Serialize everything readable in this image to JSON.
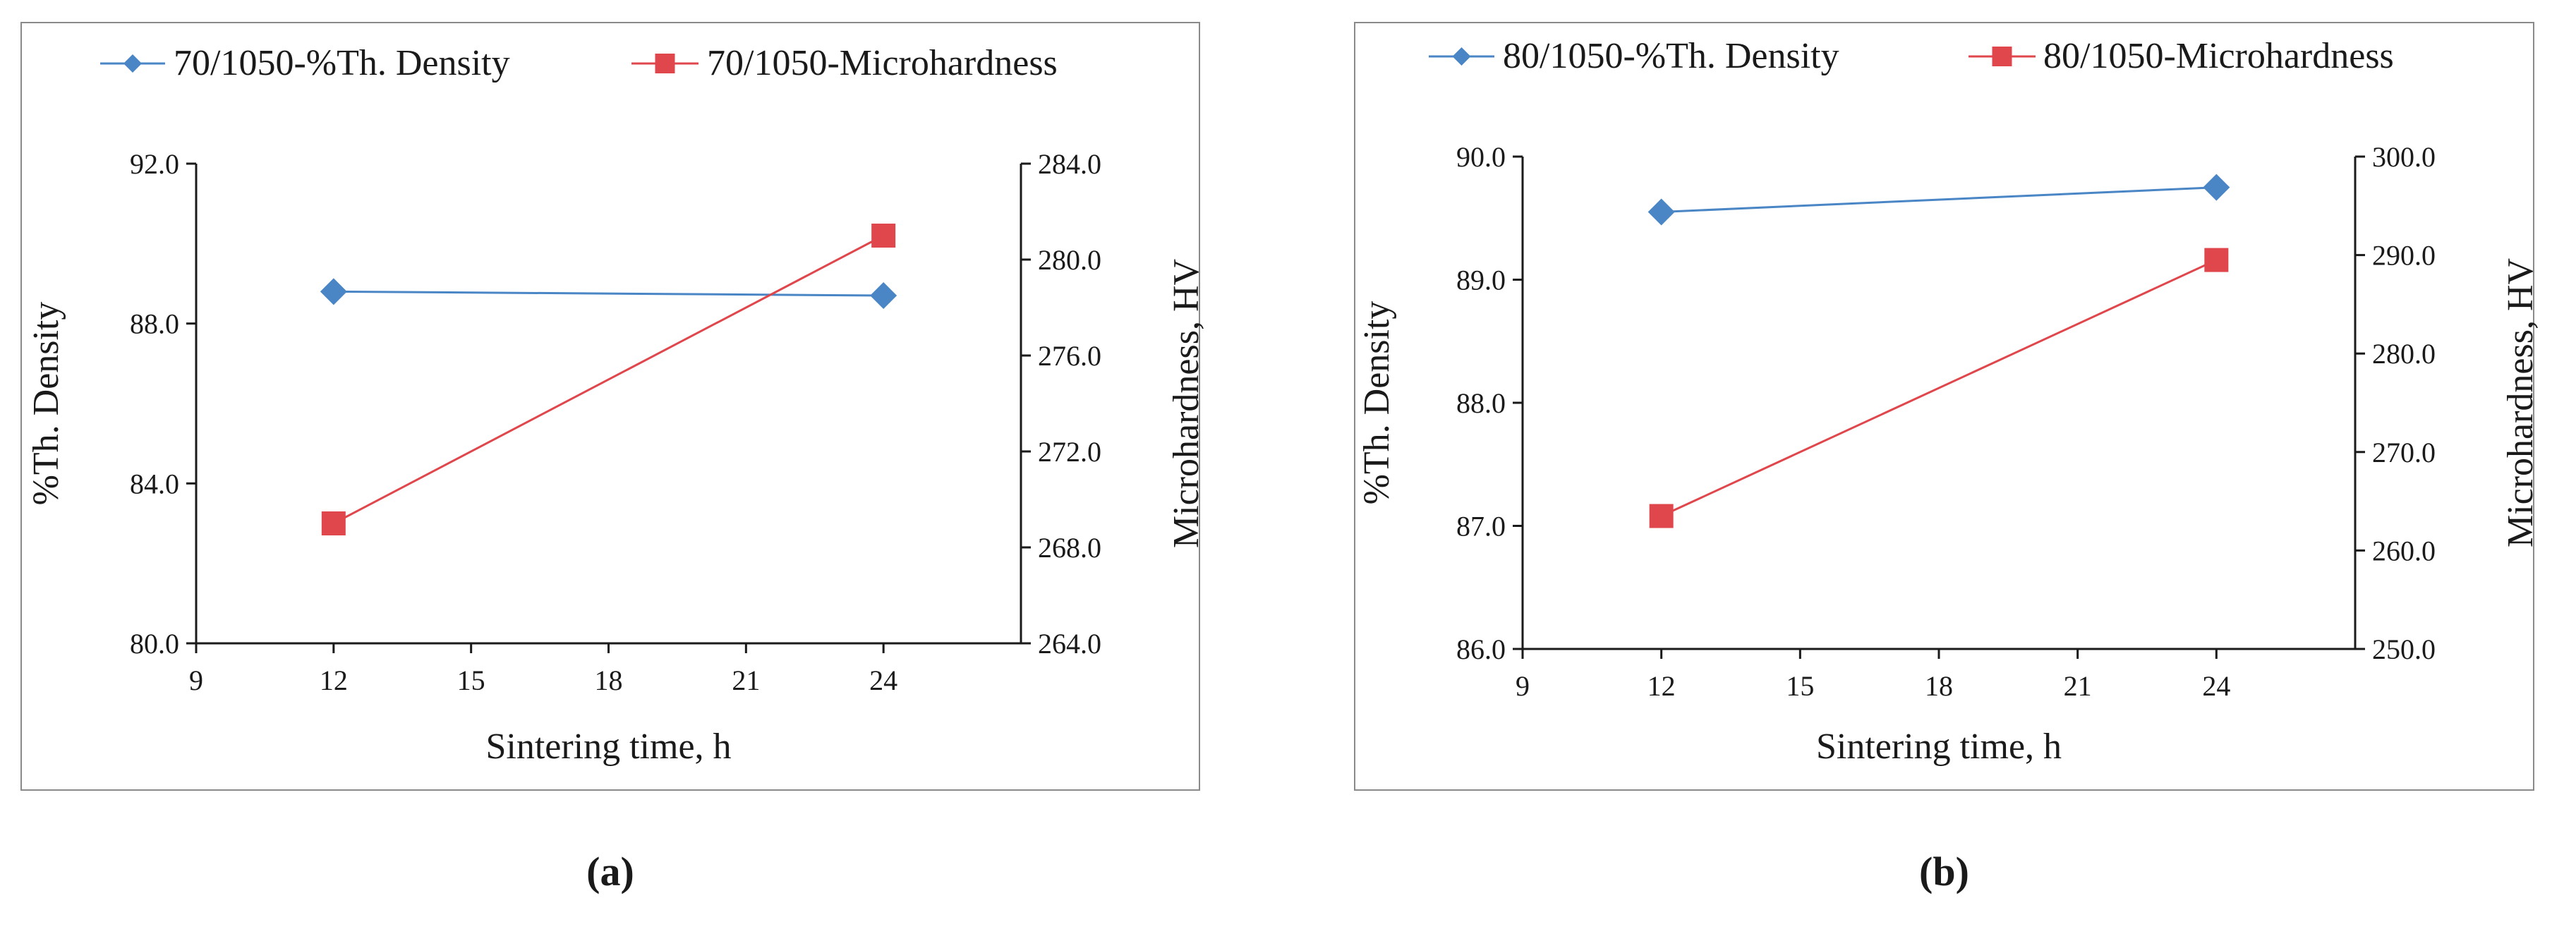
{
  "chart_data": [
    {
      "type": "line",
      "panel_label": "(a)",
      "xlabel": "Sintering time, h",
      "ylabel_left": "%Th. Density",
      "ylabel_right": "Microhardness,  HV",
      "xlim": [
        9,
        27
      ],
      "x_ticks": [
        "9",
        "12",
        "15",
        "18",
        "21",
        "24"
      ],
      "ylim_left": [
        80,
        92
      ],
      "y_ticks_left": [
        "80.0",
        "84.0",
        "88.0",
        "92.0"
      ],
      "ylim_right": [
        264,
        284
      ],
      "y_ticks_right": [
        "264.0",
        "268.0",
        "272.0",
        "276.0",
        "280.0",
        "284.0"
      ],
      "legend_position": "top",
      "series": [
        {
          "name": "70/1050-%Th. Density",
          "axis": "left",
          "marker": "diamond",
          "color": "#4a86c5",
          "x": [
            12,
            24
          ],
          "y": [
            88.8,
            88.7
          ]
        },
        {
          "name": "70/1050-Microhardness",
          "axis": "right",
          "marker": "square",
          "color": "#e0474c",
          "x": [
            12,
            24
          ],
          "y": [
            269.0,
            281.0
          ]
        }
      ]
    },
    {
      "type": "line",
      "panel_label": "(b)",
      "xlabel": "Sintering time, h",
      "ylabel_left": "%Th. Density",
      "ylabel_right": "Microhardness,  HV",
      "xlim": [
        9,
        27
      ],
      "x_ticks": [
        "9",
        "12",
        "15",
        "18",
        "21",
        "24"
      ],
      "ylim_left": [
        86,
        90
      ],
      "y_ticks_left": [
        "86.0",
        "87.0",
        "88.0",
        "89.0",
        "90.0"
      ],
      "ylim_right": [
        250,
        300
      ],
      "y_ticks_right": [
        "250.0",
        "260.0",
        "270.0",
        "280.0",
        "290.0",
        "300.0"
      ],
      "legend_position": "top",
      "series": [
        {
          "name": "80/1050-%Th. Density",
          "axis": "left",
          "marker": "diamond",
          "color": "#4a86c5",
          "x": [
            12,
            24
          ],
          "y": [
            89.55,
            89.75
          ]
        },
        {
          "name": "80/1050-Microhardness",
          "axis": "right",
          "marker": "square",
          "color": "#e0474c",
          "x": [
            12,
            24
          ],
          "y": [
            263.5,
            289.5
          ]
        }
      ]
    }
  ]
}
